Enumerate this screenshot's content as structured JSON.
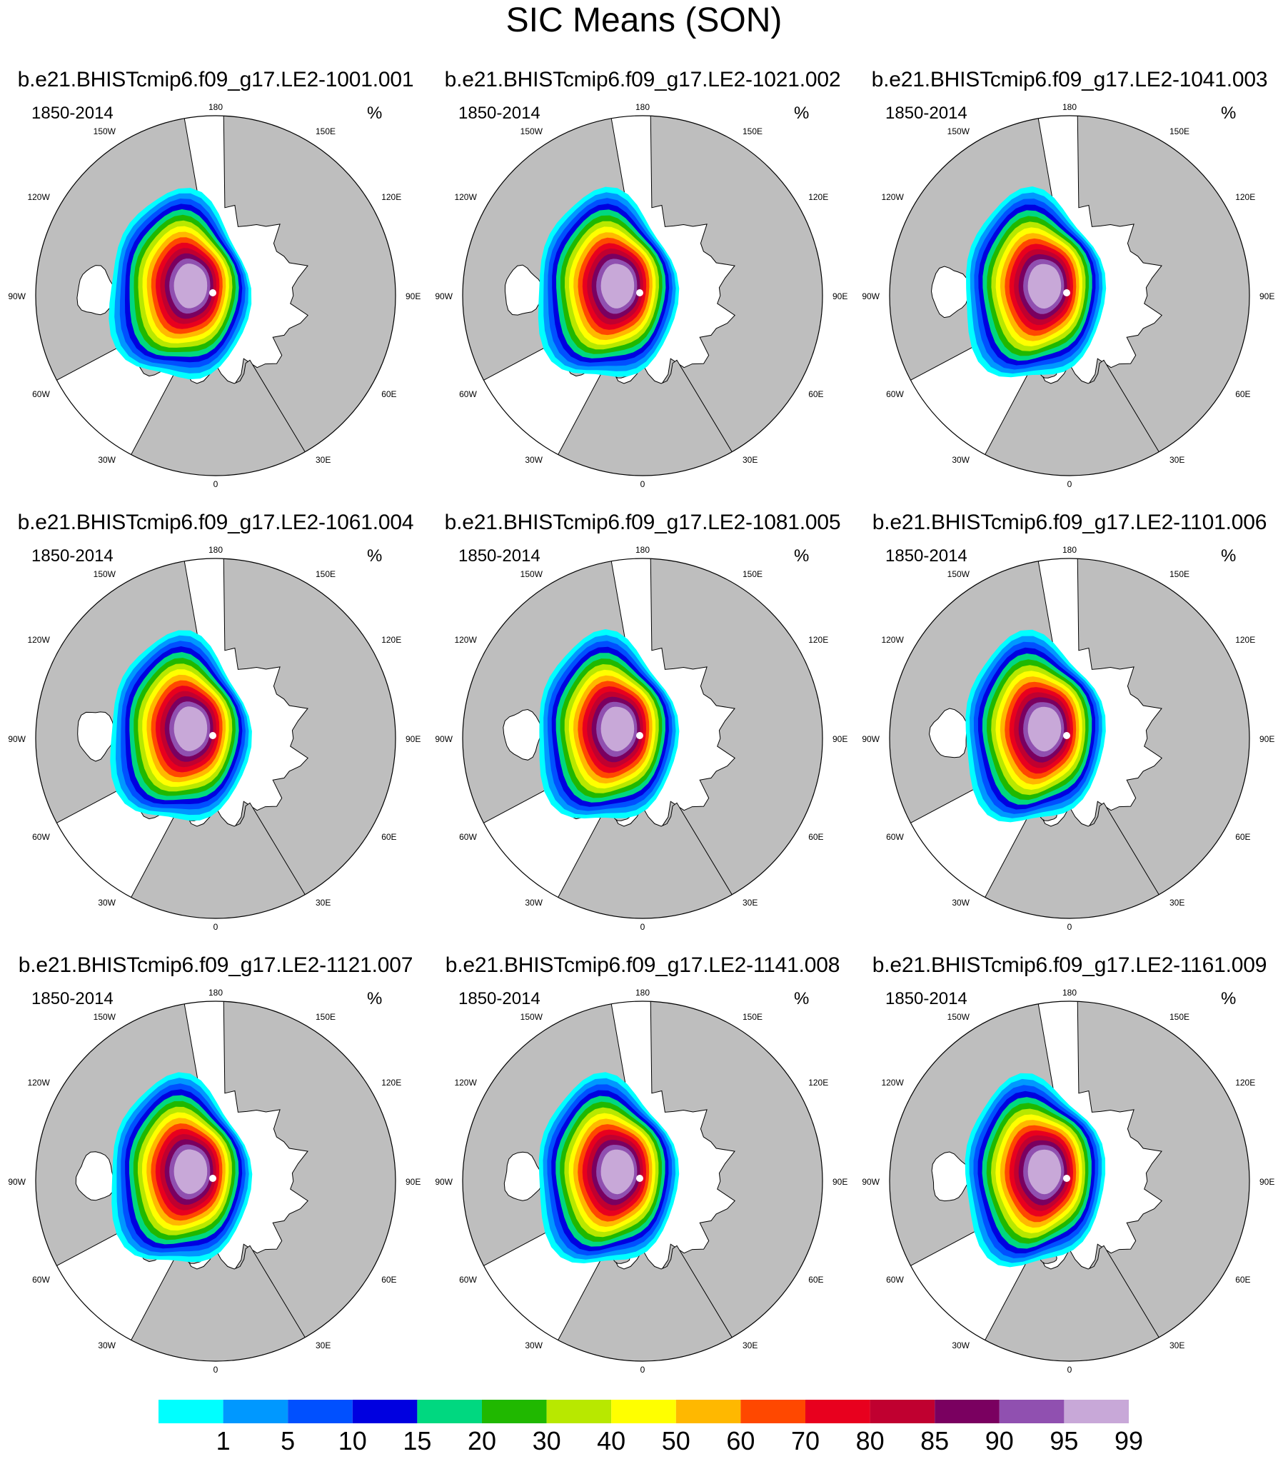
{
  "title": "SIC Means (SON)",
  "panels": [
    {
      "case": "b.e21.BHISTcmip6.f09_g17.LE2-1001.001",
      "period": "1850-2014",
      "units": "%"
    },
    {
      "case": "b.e21.BHISTcmip6.f09_g17.LE2-1021.002",
      "period": "1850-2014",
      "units": "%"
    },
    {
      "case": "b.e21.BHISTcmip6.f09_g17.LE2-1041.003",
      "period": "1850-2014",
      "units": "%"
    },
    {
      "case": "b.e21.BHISTcmip6.f09_g17.LE2-1061.004",
      "period": "1850-2014",
      "units": "%"
    },
    {
      "case": "b.e21.BHISTcmip6.f09_g17.LE2-1081.005",
      "period": "1850-2014",
      "units": "%"
    },
    {
      "case": "b.e21.BHISTcmip6.f09_g17.LE2-1101.006",
      "period": "1850-2014",
      "units": "%"
    },
    {
      "case": "b.e21.BHISTcmip6.f09_g17.LE2-1121.007",
      "period": "1850-2014",
      "units": "%"
    },
    {
      "case": "b.e21.BHISTcmip6.f09_g17.LE2-1141.008",
      "period": "1850-2014",
      "units": "%"
    },
    {
      "case": "b.e21.BHISTcmip6.f09_g17.LE2-1161.009",
      "period": "1850-2014",
      "units": "%"
    }
  ],
  "longitude_labels": [
    {
      "text": "180",
      "lon": 180
    },
    {
      "text": "150E",
      "lon": 150
    },
    {
      "text": "120E",
      "lon": 120
    },
    {
      "text": "90E",
      "lon": 90
    },
    {
      "text": "60E",
      "lon": 60
    },
    {
      "text": "30E",
      "lon": 30
    },
    {
      "text": "0",
      "lon": 0
    },
    {
      "text": "30W",
      "lon": -30
    },
    {
      "text": "60W",
      "lon": -60
    },
    {
      "text": "90W",
      "lon": -90
    },
    {
      "text": "120W",
      "lon": -120
    },
    {
      "text": "150W",
      "lon": -150
    }
  ],
  "colorbar": {
    "levels": [
      "1",
      "5",
      "10",
      "15",
      "20",
      "30",
      "40",
      "50",
      "60",
      "70",
      "80",
      "85",
      "90",
      "95",
      "99"
    ],
    "colors": [
      "#00ffff",
      "#0098ff",
      "#0050ff",
      "#0000e0",
      "#00d880",
      "#20b800",
      "#b8e800",
      "#ffff00",
      "#ffb800",
      "#ff4800",
      "#e8001e",
      "#c00030",
      "#7a0060",
      "#9050b0",
      "#c8a8d8"
    ]
  },
  "colors": {
    "land": "#bebebe",
    "ocean": "#ffffff",
    "coastline": "#000000"
  }
}
